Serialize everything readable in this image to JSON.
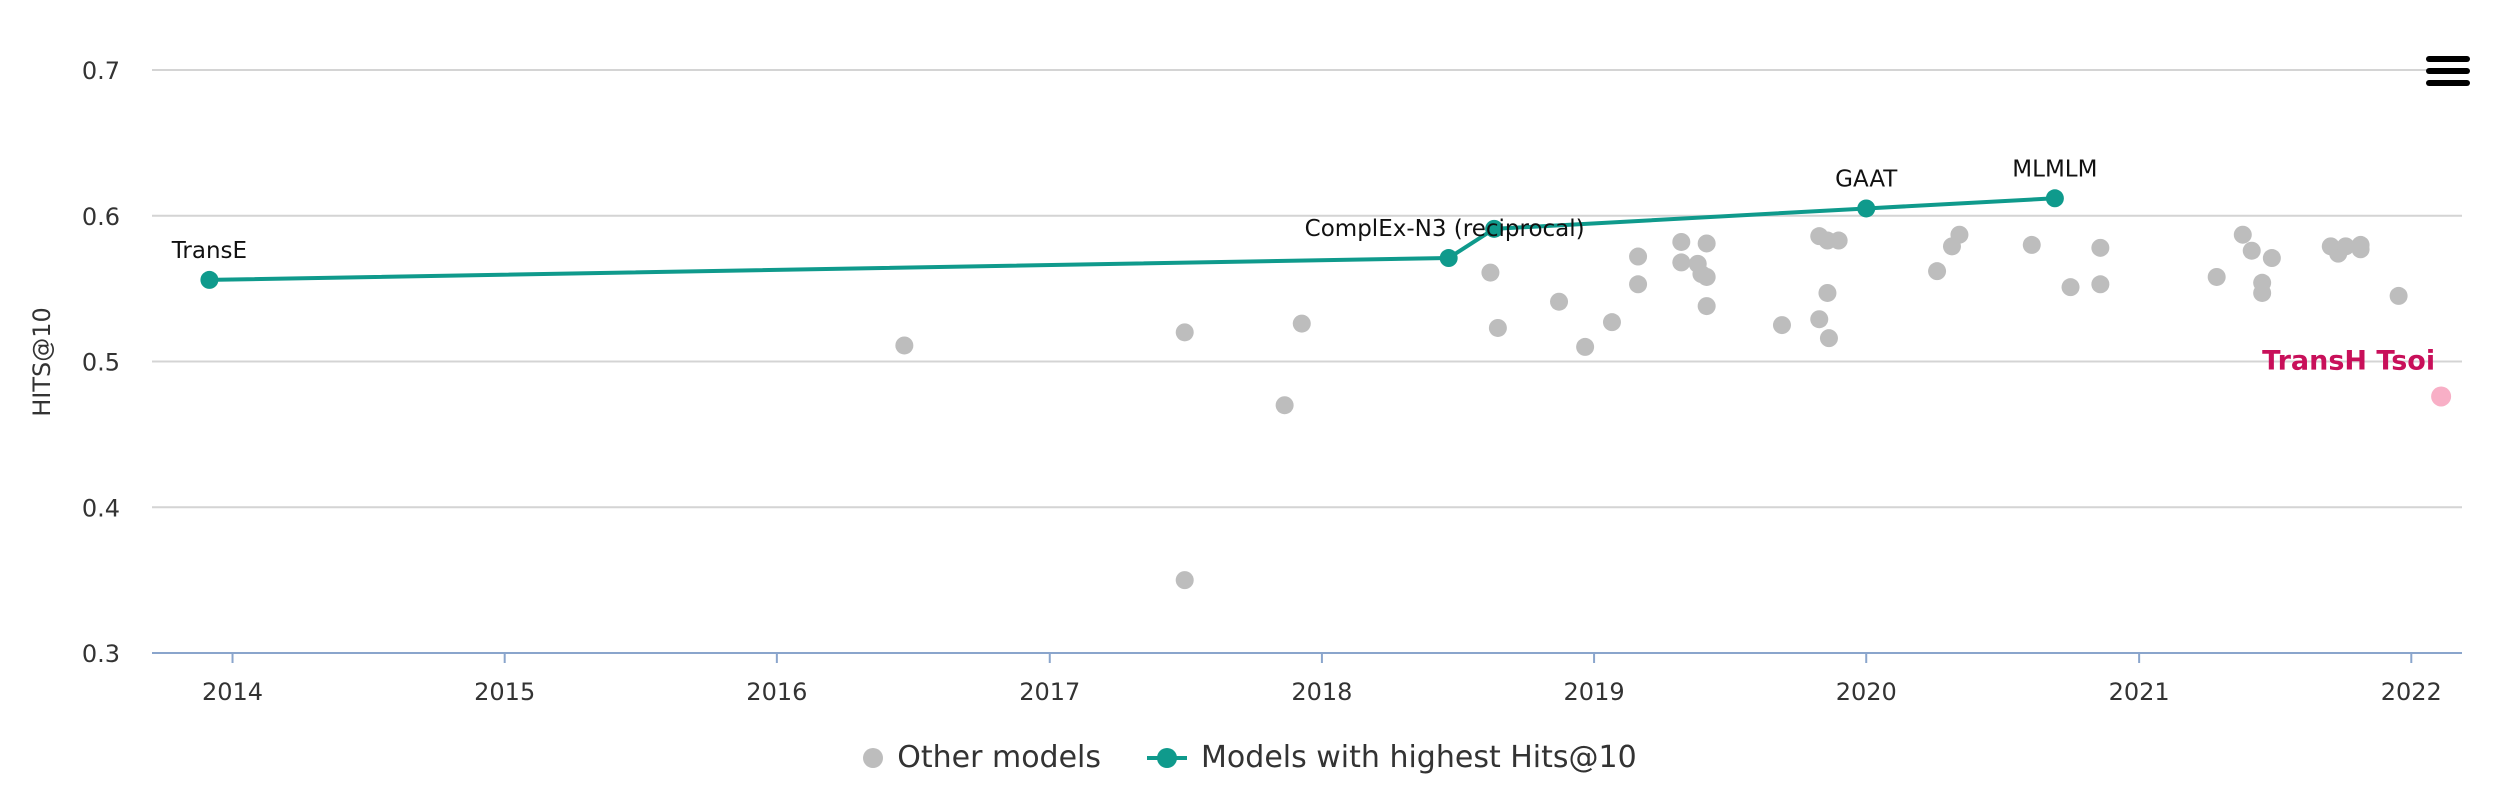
{
  "menu": {
    "icon": "hamburger-menu-icon"
  },
  "legend": {
    "other": "Other models",
    "sota": "Models with highest Hits@10"
  },
  "colors": {
    "sota": "#0f9a8c",
    "other": "#bdbdbd",
    "highlight": "#f8afc6",
    "highlight_label": "#c8105a",
    "grid": "#d4d4d4",
    "axis": "#8aa5cc"
  },
  "chart_data": {
    "type": "scatter",
    "title": "",
    "xlabel": "",
    "ylabel": "HITS@10",
    "xlim": [
      "2013-09-15",
      "2022-03-10"
    ],
    "ylim": [
      0.3,
      0.7
    ],
    "x_ticks": [
      "2014",
      "2015",
      "2016",
      "2017",
      "2018",
      "2019",
      "2020",
      "2021",
      "2022"
    ],
    "y_ticks": [
      "0.3",
      "0.4",
      "0.5",
      "0.6",
      "0.7"
    ],
    "grid": "horizontal",
    "legend_position": "bottom",
    "series": [
      {
        "name": "Other models",
        "points": [
          {
            "x": "2016-06-20",
            "y": 0.511
          },
          {
            "x": "2017-07-01",
            "y": 0.52
          },
          {
            "x": "2017-07-01",
            "y": 0.35
          },
          {
            "x": "2017-11-12",
            "y": 0.47
          },
          {
            "x": "2017-12-05",
            "y": 0.526
          },
          {
            "x": "2018-08-15",
            "y": 0.561
          },
          {
            "x": "2018-08-25",
            "y": 0.523
          },
          {
            "x": "2018-11-15",
            "y": 0.541
          },
          {
            "x": "2018-12-20",
            "y": 0.51
          },
          {
            "x": "2019-01-25",
            "y": 0.527
          },
          {
            "x": "2019-03-01",
            "y": 0.572
          },
          {
            "x": "2019-03-01",
            "y": 0.553
          },
          {
            "x": "2019-04-28",
            "y": 0.582
          },
          {
            "x": "2019-04-28",
            "y": 0.568
          },
          {
            "x": "2019-05-20",
            "y": 0.567
          },
          {
            "x": "2019-05-25",
            "y": 0.56
          },
          {
            "x": "2019-06-01",
            "y": 0.581
          },
          {
            "x": "2019-06-01",
            "y": 0.558
          },
          {
            "x": "2019-06-01",
            "y": 0.538
          },
          {
            "x": "2019-09-10",
            "y": 0.525
          },
          {
            "x": "2019-10-30",
            "y": 0.586
          },
          {
            "x": "2019-11-10",
            "y": 0.583
          },
          {
            "x": "2019-11-25",
            "y": 0.583
          },
          {
            "x": "2019-10-30",
            "y": 0.529
          },
          {
            "x": "2019-11-10",
            "y": 0.547
          },
          {
            "x": "2019-11-12",
            "y": 0.516
          },
          {
            "x": "2020-04-05",
            "y": 0.562
          },
          {
            "x": "2020-04-25",
            "y": 0.579
          },
          {
            "x": "2020-05-05",
            "y": 0.587
          },
          {
            "x": "2020-08-10",
            "y": 0.58
          },
          {
            "x": "2020-10-01",
            "y": 0.551
          },
          {
            "x": "2020-11-10",
            "y": 0.578
          },
          {
            "x": "2020-11-10",
            "y": 0.553
          },
          {
            "x": "2021-04-15",
            "y": 0.558
          },
          {
            "x": "2021-05-20",
            "y": 0.587
          },
          {
            "x": "2021-06-01",
            "y": 0.576
          },
          {
            "x": "2021-06-15",
            "y": 0.554
          },
          {
            "x": "2021-06-15",
            "y": 0.547
          },
          {
            "x": "2021-06-28",
            "y": 0.571
          },
          {
            "x": "2021-09-15",
            "y": 0.579
          },
          {
            "x": "2021-09-25",
            "y": 0.574
          },
          {
            "x": "2021-10-05",
            "y": 0.579
          },
          {
            "x": "2021-10-25",
            "y": 0.58
          },
          {
            "x": "2021-10-25",
            "y": 0.577
          },
          {
            "x": "2021-12-15",
            "y": 0.545
          }
        ]
      },
      {
        "name": "Models with highest Hits@10",
        "points": [
          {
            "x": "2013-12-01",
            "y": 0.556,
            "label": "TransE"
          },
          {
            "x": "2018-06-20",
            "y": 0.571,
            "label": "ComplEx-N3 (reciprocal)"
          },
          {
            "x": "2018-08-20",
            "y": 0.591,
            "label": ""
          },
          {
            "x": "2020-01-01",
            "y": 0.605,
            "label": "GAAT"
          },
          {
            "x": "2020-09-10",
            "y": 0.612,
            "label": "MLMLM"
          }
        ]
      },
      {
        "name": "",
        "points": [
          {
            "x": "2022-02-10",
            "y": 0.476,
            "label": "TransH Tsoi"
          }
        ]
      }
    ]
  }
}
